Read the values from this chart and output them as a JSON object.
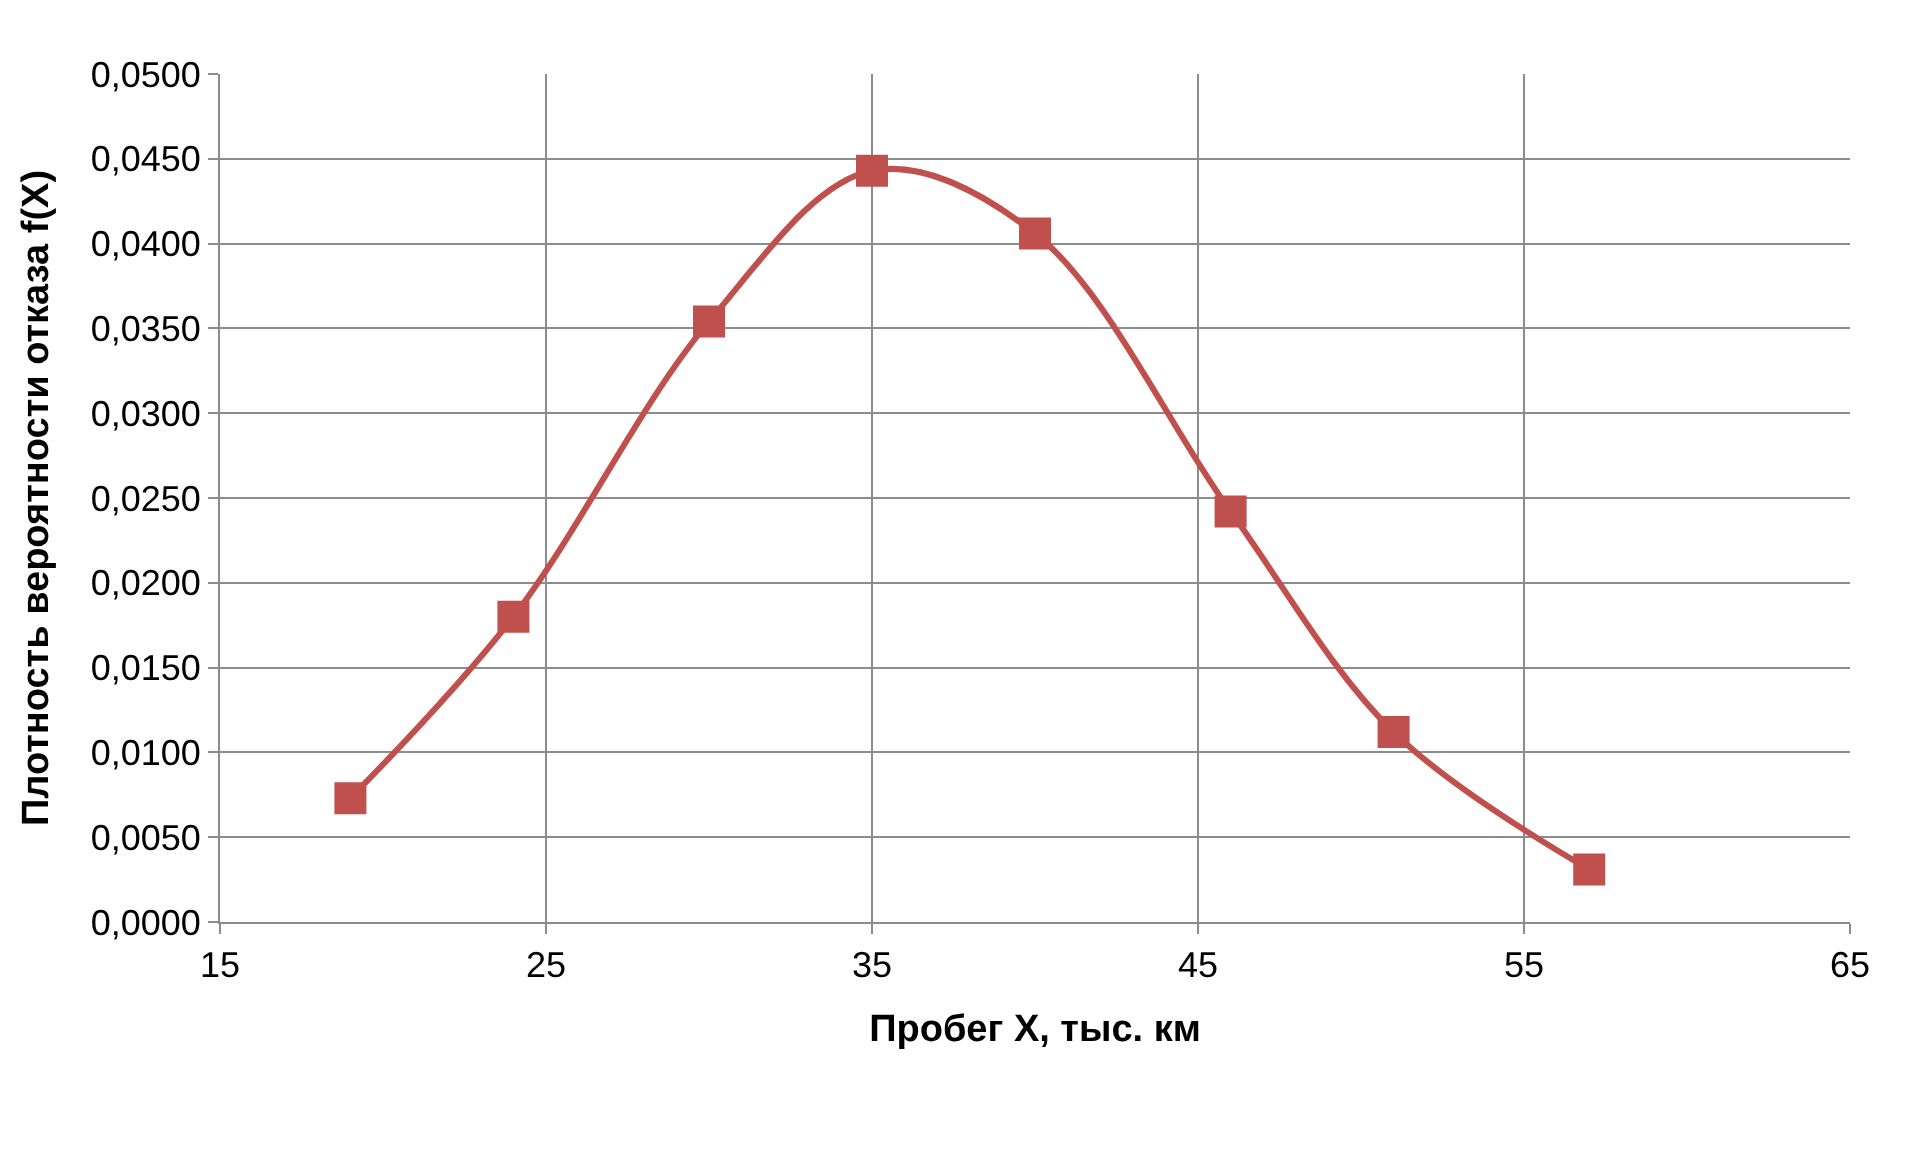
{
  "chart_data": {
    "type": "line",
    "xlabel": "Пробег X, тыс. км",
    "ylabel": "Плотность вероятности отказа f(X)",
    "x": [
      19,
      24,
      30,
      35,
      40,
      46,
      51,
      57
    ],
    "series": [
      {
        "color": "#c0504d",
        "values": [
          0.0073,
          0.018,
          0.0354,
          0.0443,
          0.0406,
          0.0242,
          0.0112,
          0.0031
        ]
      }
    ],
    "xlim": [
      15,
      65
    ],
    "xticks": [
      15,
      25,
      35,
      45,
      55,
      65
    ],
    "ylim": [
      0,
      0.05
    ],
    "yticks": [
      {
        "value": 0,
        "label": "0,0000"
      },
      {
        "value": 0.005,
        "label": "0,0050"
      },
      {
        "value": 0.01,
        "label": "0,0100"
      },
      {
        "value": 0.015,
        "label": "0,0150"
      },
      {
        "value": 0.02,
        "label": "0,0200"
      },
      {
        "value": 0.025,
        "label": "0,0250"
      },
      {
        "value": 0.03,
        "label": "0,0300"
      },
      {
        "value": 0.035,
        "label": "0,0350"
      },
      {
        "value": 0.04,
        "label": "0,0400"
      },
      {
        "value": 0.045,
        "label": "0,0450"
      },
      {
        "value": 0.05,
        "label": "0,0500"
      }
    ],
    "grid": true,
    "legend": false,
    "marker": "square",
    "line_style": "solid"
  }
}
